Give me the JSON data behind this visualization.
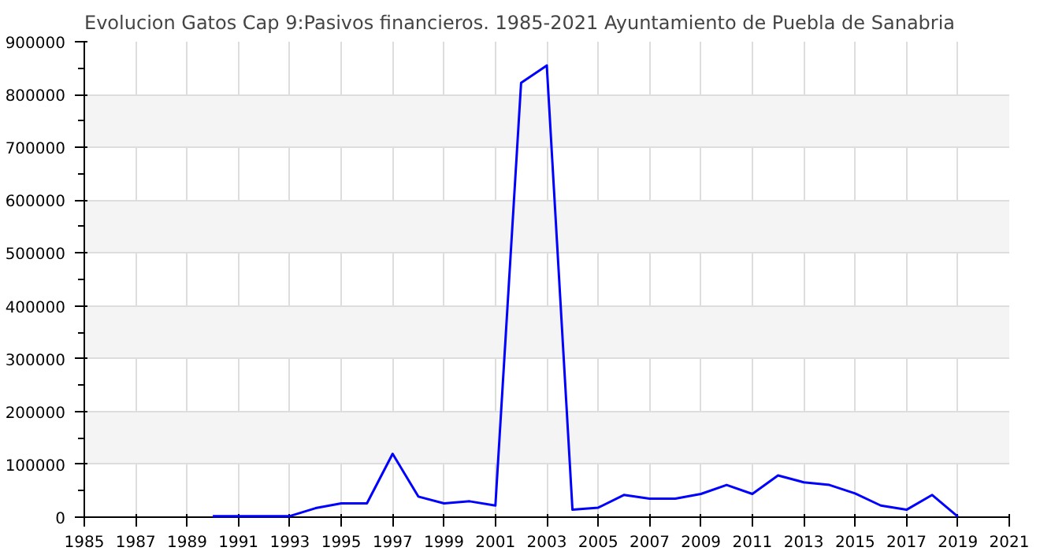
{
  "chart_data": {
    "type": "line",
    "title": "Evolucion Gatos Cap 9:Pasivos financieros. 1985-2021 Ayuntamiento de Puebla de Sanabria",
    "x": [
      1990,
      1991,
      1992,
      1993,
      1994,
      1995,
      1996,
      1997,
      1998,
      1999,
      2000,
      2001,
      2002,
      2003,
      2004,
      2005,
      2006,
      2007,
      2008,
      2009,
      2010,
      2011,
      2012,
      2013,
      2014,
      2015,
      2016,
      2017,
      2018,
      2019
    ],
    "series": [
      {
        "color": "#0000ff",
        "values": [
          2000,
          2000,
          2000,
          2000,
          17000,
          26000,
          26000,
          120000,
          39000,
          26000,
          30000,
          22000,
          822000,
          855000,
          14000,
          18000,
          42000,
          35000,
          35000,
          44000,
          61000,
          44000,
          79000,
          66000,
          61000,
          45000,
          22000,
          14000,
          42000,
          1000
        ]
      }
    ],
    "xlim": [
      1985,
      2021
    ],
    "xticks": [
      1985,
      1987,
      1989,
      1991,
      1993,
      1995,
      1997,
      1999,
      2001,
      2003,
      2005,
      2007,
      2009,
      2011,
      2013,
      2015,
      2017,
      2019,
      2021
    ],
    "ylim": [
      0,
      900000
    ],
    "yticks": [
      0,
      100000,
      200000,
      300000,
      400000,
      500000,
      600000,
      700000,
      800000,
      900000
    ],
    "grid": true,
    "marker": "none",
    "line_style": "solid"
  }
}
